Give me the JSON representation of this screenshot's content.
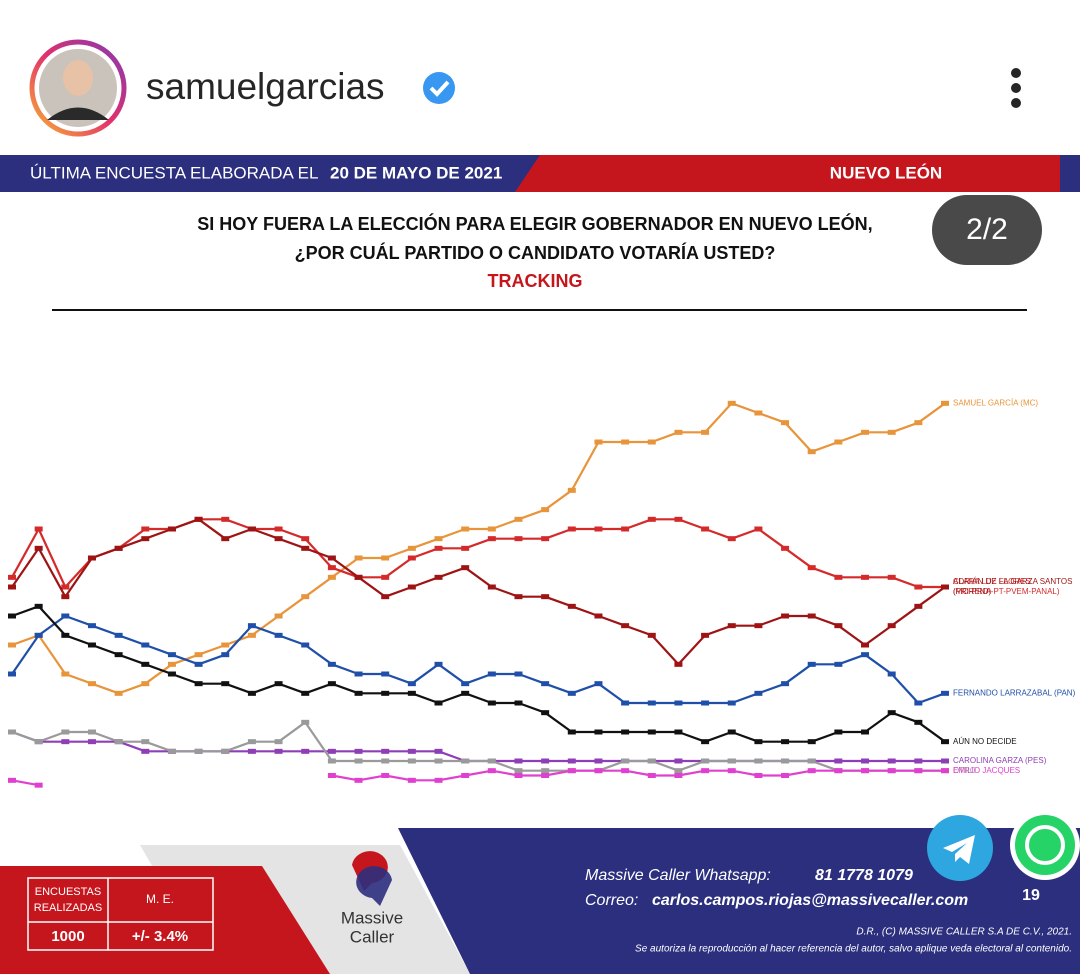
{
  "header": {
    "username": "samuelgarcias"
  },
  "banner": {
    "left": "ÚLTIMA ENCUESTA ELABORADA EL",
    "date": "20 DE MAYO DE 2021",
    "right": "NUEVO LEÓN"
  },
  "page_indicator": "2/2",
  "chart_data": {
    "type": "line",
    "title": [
      "SI HOY FUERA LA ELECCIÓN PARA ELEGIR GOBERNADOR EN NUEVO LEÓN,",
      "¿POR CUÁL PARTIDO O CANDIDATO VOTARÍA USTED?"
    ],
    "subtitle": "TRACKING",
    "ylim": [
      0,
      45
    ],
    "series": [
      {
        "name": "SAMUEL GARCÍA (MC)",
        "color": "#e8943a",
        "values": [
          15,
          16,
          12,
          11,
          10,
          11,
          13,
          14,
          15,
          16,
          18,
          20,
          22,
          24,
          24,
          25,
          26,
          27,
          27,
          28,
          29,
          31,
          36,
          36,
          36,
          37,
          37,
          40,
          39,
          38,
          35,
          36,
          37,
          37,
          38,
          40
        ]
      },
      {
        "name": "CLARA LUZ FLORES",
        "party": "(MORENA-PT-PVEM-PANAL)",
        "color": "#d42a2a",
        "values": [
          22,
          27,
          21,
          24,
          25,
          27,
          27,
          28,
          28,
          27,
          27,
          26,
          23,
          22,
          22,
          24,
          25,
          25,
          26,
          26,
          26,
          27,
          27,
          27,
          28,
          28,
          27,
          26,
          27,
          25,
          23,
          22,
          22,
          22,
          21,
          21
        ]
      },
      {
        "name": "ADRIÁN DE LA GARZA SANTOS",
        "party": "(PRI-PRD)",
        "color": "#9e1414",
        "values": [
          21,
          25,
          20,
          24,
          25,
          26,
          27,
          28,
          26,
          27,
          26,
          25,
          24,
          22,
          20,
          21,
          22,
          23,
          21,
          20,
          20,
          19,
          18,
          17,
          16,
          13,
          16,
          17,
          17,
          18,
          18,
          17,
          15,
          17,
          19,
          21
        ]
      },
      {
        "name": "FERNANDO LARRAZABAL (PAN)",
        "color": "#1f4fa8",
        "values": [
          12,
          16,
          18,
          17,
          16,
          15,
          14,
          13,
          14,
          17,
          16,
          15,
          13,
          12,
          12,
          11,
          13,
          11,
          12,
          12,
          11,
          10,
          11,
          9,
          9,
          9,
          9,
          9,
          10,
          11,
          13,
          13,
          14,
          12,
          9,
          10
        ]
      },
      {
        "name": "AÚN NO DECIDE",
        "color": "#111111",
        "values": [
          18,
          19,
          16,
          15,
          14,
          13,
          12,
          11,
          11,
          10,
          11,
          10,
          11,
          10,
          10,
          10,
          9,
          10,
          9,
          9,
          8,
          6,
          6,
          6,
          6,
          6,
          5,
          6,
          5,
          5,
          5,
          6,
          6,
          8,
          7,
          5
        ]
      },
      {
        "name": "CAROLINA GARZA (PES)",
        "color": "#8e3fb5",
        "values": [
          6,
          5,
          5,
          5,
          5,
          4,
          4,
          4,
          4,
          4,
          4,
          4,
          4,
          4,
          4,
          4,
          4,
          3,
          3,
          3,
          3,
          3,
          3,
          3,
          3,
          3,
          3,
          3,
          3,
          3,
          3,
          3,
          3,
          3,
          3,
          3
        ]
      },
      {
        "name": "OTRO",
        "color": "#9a9a9a",
        "values": [
          6,
          5,
          6,
          6,
          5,
          5,
          4,
          4,
          4,
          5,
          5,
          7,
          3,
          3,
          3,
          3,
          3,
          3,
          3,
          2,
          2,
          2,
          2,
          3,
          3,
          2,
          3,
          3,
          3,
          3,
          3,
          2,
          2,
          2,
          2,
          2
        ]
      },
      {
        "name": "EMILIO JACQUES",
        "color": "#e040d0",
        "values": [
          1,
          0.5,
          null,
          null,
          null,
          null,
          null,
          null,
          null,
          null,
          null,
          null,
          1.5,
          1,
          1.5,
          1,
          1,
          1.5,
          2,
          1.5,
          1.5,
          2,
          2,
          2,
          1.5,
          1.5,
          2,
          2,
          1.5,
          1.5,
          2,
          2,
          2,
          2,
          2,
          2
        ]
      }
    ]
  },
  "footer": {
    "table": {
      "header": [
        "ENCUESTAS REALIZADAS",
        "M. E."
      ],
      "row": [
        "1000",
        "+/- 3.4%"
      ]
    },
    "logo": [
      "Massive",
      "Caller"
    ],
    "whatsapp_label": "Massive Caller Whatsapp:",
    "whatsapp": "81 1778 1079",
    "email_label": "Correo:",
    "email": "carlos.campos.riojas@massivecaller.com",
    "rights": "D.R., (C) MASSIVE CALLER S.A DE C.V., 2021.",
    "note": "Se autoriza la reproducción al hacer referencia del autor, salvo aplique veda electoral al contenido.",
    "badge_count": "19"
  }
}
